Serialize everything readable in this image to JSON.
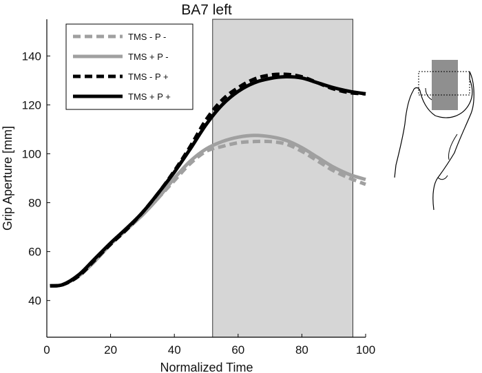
{
  "chart_data": {
    "type": "line",
    "title": "BA7 left",
    "xlabel": "Normalized Time",
    "ylabel": "Grip Aperture [mm]",
    "xlim": [
      0,
      100
    ],
    "ylim": [
      25,
      155
    ],
    "xticks": [
      0,
      20,
      40,
      60,
      80,
      100
    ],
    "yticks": [
      40,
      60,
      80,
      100,
      120,
      140
    ],
    "grid": false,
    "legend_position": "top-left",
    "shaded_region": [
      52,
      96
    ],
    "x": [
      1,
      5,
      10,
      15,
      20,
      25,
      30,
      35,
      40,
      45,
      50,
      55,
      60,
      65,
      70,
      75,
      80,
      85,
      90,
      95,
      100
    ],
    "series": [
      {
        "name": "TMS - P -",
        "color": "#a0a0a0",
        "style": "dashed",
        "values": [
          46,
          46.5,
          50,
          56,
          63,
          69,
          75,
          82,
          89,
          96,
          101,
          103,
          104.5,
          105,
          105,
          104,
          101,
          97,
          93,
          90,
          87.5
        ]
      },
      {
        "name": "TMS + P -",
        "color": "#a0a0a0",
        "style": "solid",
        "values": [
          46,
          46.5,
          50,
          56,
          63,
          69,
          75,
          82,
          90,
          97,
          102,
          105,
          106.8,
          107.5,
          107,
          105.5,
          102.5,
          98.5,
          94.5,
          91.5,
          89.5
        ]
      },
      {
        "name": "TMS - P +",
        "color": "#000000",
        "style": "dashed",
        "values": [
          46,
          46.5,
          50,
          56.5,
          63,
          69,
          76,
          84,
          93,
          103,
          114,
          122,
          127,
          130.5,
          132.2,
          132.5,
          131.5,
          129,
          126.5,
          125,
          124.5
        ]
      },
      {
        "name": "TMS + P +",
        "color": "#000000",
        "style": "solid",
        "values": [
          46,
          46.5,
          50.5,
          57,
          63.5,
          69.5,
          76,
          84,
          92.5,
          102,
          112,
          120,
          125.5,
          129,
          130.8,
          131.5,
          131,
          129,
          127,
          125.5,
          124.5
        ]
      }
    ]
  }
}
